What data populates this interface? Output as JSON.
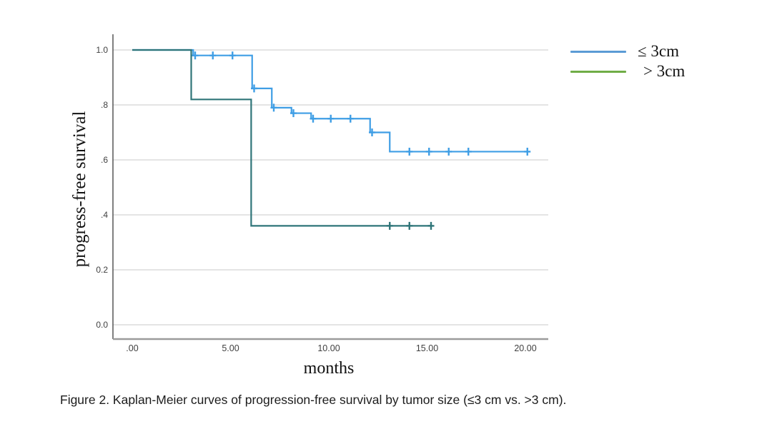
{
  "figure": {
    "caption": "Figure 2. Kaplan-Meier curves of progression-free survival by tumor size (≤3 cm vs. >3 cm).",
    "x_axis_label": "months",
    "y_axis_label": "progress-free survival"
  },
  "legend": {
    "position": "top-right",
    "items": [
      {
        "label": "≤ 3cm",
        "color": "#5b9bd5"
      },
      {
        "label": "> 3cm",
        "color": "#70ad47"
      }
    ]
  },
  "chart_data": {
    "type": "line",
    "subtype": "kaplan-meier-step",
    "title": "",
    "xlabel": "months",
    "ylabel": "progress-free survival",
    "xlim": [
      0,
      21.2
    ],
    "ylim": [
      0,
      1.05
    ],
    "grid": "horizontal",
    "grid_color": "#c9c9c9",
    "x_ticks": [
      {
        "value": 0,
        "label": ".00"
      },
      {
        "value": 5,
        "label": "5.00"
      },
      {
        "value": 10,
        "label": "10.00"
      },
      {
        "value": 15,
        "label": "15.00"
      },
      {
        "value": 20,
        "label": "20.00"
      }
    ],
    "y_ticks": [
      {
        "value": 1.0,
        "label": "1.0"
      },
      {
        "value": 0.8,
        "label": ".8"
      },
      {
        "value": 0.6,
        "label": ".6"
      },
      {
        "value": 0.4,
        "label": ".4"
      },
      {
        "value": 0.2,
        "label": "0.2"
      },
      {
        "value": 0.0,
        "label": "0.0"
      }
    ],
    "series": [
      {
        "name": "≤ 3cm",
        "color": "#3f9ee5",
        "steps": [
          [
            0,
            1.0
          ],
          [
            3.1,
            0.98
          ],
          [
            6.1,
            0.86
          ],
          [
            7.1,
            0.79
          ],
          [
            8.1,
            0.77
          ],
          [
            9.1,
            0.75
          ],
          [
            12.1,
            0.7
          ],
          [
            13.1,
            0.63
          ]
        ],
        "end_time": 20.1,
        "censors": [
          [
            3.2,
            0.98
          ],
          [
            4.1,
            0.98
          ],
          [
            5.1,
            0.98
          ],
          [
            6.2,
            0.86
          ],
          [
            7.2,
            0.79
          ],
          [
            8.2,
            0.77
          ],
          [
            9.2,
            0.75
          ],
          [
            10.1,
            0.75
          ],
          [
            11.1,
            0.75
          ],
          [
            12.2,
            0.7
          ],
          [
            14.1,
            0.63
          ],
          [
            15.1,
            0.63
          ],
          [
            16.1,
            0.63
          ],
          [
            17.1,
            0.63
          ],
          [
            20.1,
            0.63
          ]
        ]
      },
      {
        "name": "> 3cm",
        "color": "#2f7579",
        "steps": [
          [
            0,
            1.0
          ],
          [
            3.0,
            0.82
          ],
          [
            6.05,
            0.36
          ]
        ],
        "end_time": 15.25,
        "censors": [
          [
            13.1,
            0.36
          ],
          [
            14.1,
            0.36
          ],
          [
            15.2,
            0.36
          ]
        ]
      }
    ]
  }
}
